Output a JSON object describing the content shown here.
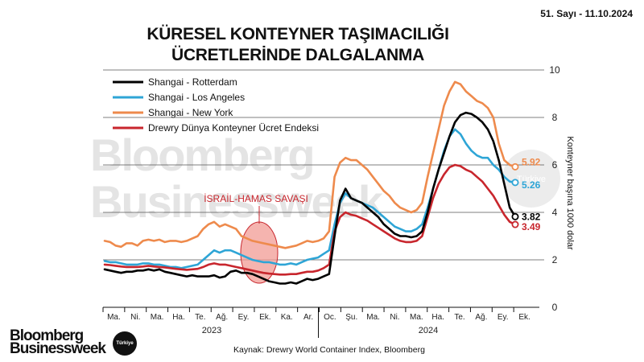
{
  "issue_label": "51. Sayı - 11.10.2024",
  "title_lines": [
    "KÜRESEL KONTEYNER TAŞIMACILIĞI",
    "ÜCRETLERİNDE DALGALANMA"
  ],
  "source": "Kaynak: Drewry World Container Index, Bloomberg",
  "brand_lines": [
    "Bloomberg",
    "Businessweek"
  ],
  "brand_badge": "Türkiye",
  "watermark_lines": [
    "Bloomberg",
    "Businessweek"
  ],
  "watermark_badge": "Türkiye",
  "chart_data": {
    "type": "line",
    "title": "KÜRESEL KONTEYNER TAŞIMACILIĞI ÜCRETLERİNDE DALGALANMA",
    "ylabel": "Konteyner başına 1000 dolar",
    "ylim": [
      0,
      10
    ],
    "yticks": [
      0,
      2,
      4,
      6,
      8,
      10
    ],
    "month_labels": [
      "Ma.",
      "Ni.",
      "Ma.",
      "Ha.",
      "Te.",
      "Ağ.",
      "Ey.",
      "Ek.",
      "Ka.",
      "Ar.",
      "Oc.",
      "Şu.",
      "Ma.",
      "Ni.",
      "Ma.",
      "Ha.",
      "Te.",
      "Ağ.",
      "Ey.",
      "Ek."
    ],
    "year_labels": [
      "2023",
      "2024"
    ],
    "annotation": "İSRAİL-HAMAS SAVAŞI",
    "end_labels": [
      "5.92",
      "5.26",
      "3.82",
      "3.49"
    ],
    "series": [
      {
        "name": "Shangai - Rotterdam",
        "color": "#000000",
        "values": [
          1.6,
          1.55,
          1.5,
          1.45,
          1.5,
          1.5,
          1.55,
          1.55,
          1.6,
          1.55,
          1.6,
          1.5,
          1.45,
          1.4,
          1.35,
          1.3,
          1.35,
          1.3,
          1.3,
          1.3,
          1.35,
          1.25,
          1.3,
          1.5,
          1.55,
          1.45,
          1.45,
          1.4,
          1.3,
          1.2,
          1.1,
          1.05,
          1.0,
          1.0,
          1.05,
          1.0,
          1.1,
          1.2,
          1.15,
          1.2,
          1.3,
          1.4,
          3.0,
          4.5,
          5.0,
          4.6,
          4.5,
          4.4,
          4.2,
          4.0,
          3.8,
          3.5,
          3.3,
          3.1,
          3.0,
          3.0,
          2.95,
          3.0,
          3.2,
          4.0,
          5.0,
          5.8,
          6.5,
          7.2,
          7.8,
          8.1,
          8.2,
          8.15,
          8.0,
          7.8,
          7.5,
          7.0,
          6.2,
          5.2,
          4.2,
          3.82
        ],
        "end_label": "3.82"
      },
      {
        "name": "Shangai - Los Angeles",
        "color": "#2ea5d6",
        "values": [
          1.95,
          1.9,
          1.9,
          1.85,
          1.8,
          1.8,
          1.8,
          1.85,
          1.85,
          1.8,
          1.8,
          1.75,
          1.7,
          1.7,
          1.65,
          1.7,
          1.75,
          1.8,
          2.0,
          2.2,
          2.4,
          2.3,
          2.4,
          2.4,
          2.3,
          2.2,
          2.1,
          2.0,
          1.95,
          1.9,
          1.9,
          1.85,
          1.8,
          1.8,
          1.85,
          1.8,
          1.9,
          2.0,
          2.05,
          2.1,
          2.25,
          2.4,
          3.5,
          4.4,
          4.8,
          4.6,
          4.5,
          4.4,
          4.3,
          4.2,
          4.0,
          3.8,
          3.6,
          3.4,
          3.3,
          3.2,
          3.2,
          3.3,
          3.5,
          4.2,
          5.0,
          5.8,
          6.6,
          7.2,
          7.5,
          7.3,
          6.9,
          6.6,
          6.4,
          6.3,
          6.3,
          6.0,
          5.8,
          5.5,
          5.3,
          5.26
        ],
        "end_label": "5.26"
      },
      {
        "name": "Shangai - New York",
        "color": "#ee8a4c",
        "values": [
          2.8,
          2.75,
          2.6,
          2.55,
          2.7,
          2.7,
          2.6,
          2.8,
          2.85,
          2.8,
          2.85,
          2.75,
          2.8,
          2.8,
          2.75,
          2.8,
          2.9,
          3.0,
          3.3,
          3.5,
          3.6,
          3.4,
          3.5,
          3.4,
          3.3,
          3.0,
          2.9,
          2.8,
          2.75,
          2.7,
          2.65,
          2.6,
          2.55,
          2.5,
          2.55,
          2.6,
          2.7,
          2.8,
          2.75,
          2.8,
          2.9,
          3.2,
          5.5,
          6.1,
          6.3,
          6.2,
          6.2,
          6.0,
          5.8,
          5.5,
          5.2,
          4.9,
          4.7,
          4.4,
          4.2,
          4.1,
          4.0,
          4.1,
          4.4,
          5.5,
          6.5,
          7.5,
          8.5,
          9.1,
          9.5,
          9.4,
          9.1,
          8.9,
          8.7,
          8.6,
          8.4,
          8.0,
          6.9,
          6.2,
          6.0,
          5.92
        ],
        "end_label": "5.92"
      },
      {
        "name": "Drewry Dünya Konteyner Ücret Endeksi",
        "color": "#c8262d",
        "values": [
          1.8,
          1.78,
          1.75,
          1.72,
          1.7,
          1.7,
          1.7,
          1.72,
          1.75,
          1.72,
          1.7,
          1.68,
          1.65,
          1.62,
          1.6,
          1.58,
          1.6,
          1.62,
          1.7,
          1.8,
          1.85,
          1.8,
          1.8,
          1.75,
          1.7,
          1.65,
          1.6,
          1.55,
          1.5,
          1.45,
          1.42,
          1.4,
          1.38,
          1.38,
          1.4,
          1.4,
          1.45,
          1.5,
          1.5,
          1.55,
          1.65,
          1.8,
          3.2,
          3.8,
          4.0,
          3.9,
          3.85,
          3.75,
          3.65,
          3.5,
          3.35,
          3.2,
          3.05,
          2.9,
          2.8,
          2.75,
          2.75,
          2.8,
          3.0,
          3.8,
          4.6,
          5.2,
          5.6,
          5.9,
          6.0,
          5.95,
          5.8,
          5.7,
          5.5,
          5.3,
          5.0,
          4.7,
          4.3,
          3.9,
          3.6,
          3.49
        ],
        "end_label": "3.49"
      }
    ],
    "grid": true,
    "legend_position": "top-left"
  }
}
